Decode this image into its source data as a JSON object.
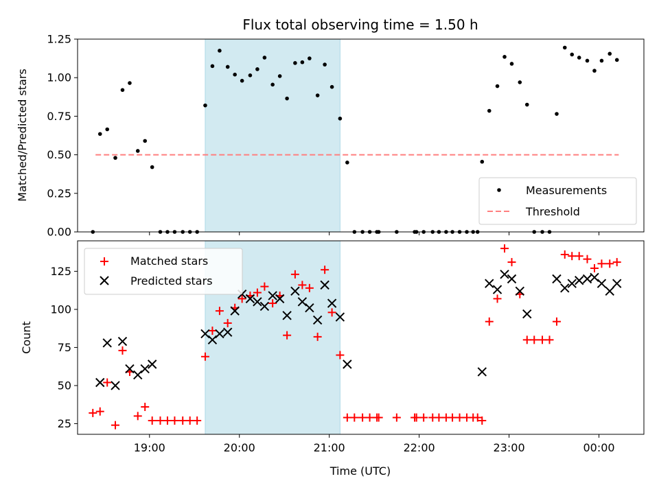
{
  "chart_data": [
    {
      "type": "scatter",
      "title": "Flux total observing time = 1.50 h",
      "xlabel": "",
      "ylabel": "Matched/Predicted stars",
      "x_unit": "UTC hour (continuing past midnight)",
      "xlim": [
        18.2,
        24.5
      ],
      "ylim": [
        0,
        1.25
      ],
      "yticks": [
        0.0,
        0.25,
        0.5,
        0.75,
        1.0,
        1.25
      ],
      "ytick_labels": [
        "0.00",
        "0.25",
        "0.50",
        "0.75",
        "1.00",
        "1.25"
      ],
      "shaded_interval": [
        19.62,
        21.12
      ],
      "shaded_color": "#add8e6",
      "legend": {
        "location": "lower-right",
        "entries": [
          "Measurements",
          "Threshold"
        ]
      },
      "threshold": {
        "name": "Threshold",
        "x": [
          18.4,
          24.22
        ],
        "y": 0.5,
        "color": "#ff7f7f",
        "style": "dashed"
      },
      "series": [
        {
          "name": "Measurements",
          "color": "#000000",
          "marker": "dot",
          "points": [
            [
              18.37,
              0.0
            ],
            [
              18.45,
              0.635
            ],
            [
              18.53,
              0.665
            ],
            [
              18.62,
              0.48
            ],
            [
              18.7,
              0.92
            ],
            [
              18.78,
              0.965
            ],
            [
              18.87,
              0.525
            ],
            [
              18.95,
              0.59
            ],
            [
              19.03,
              0.42
            ],
            [
              19.12,
              0.0
            ],
            [
              19.2,
              0.0
            ],
            [
              19.28,
              0.0
            ],
            [
              19.37,
              0.0
            ],
            [
              19.45,
              0.0
            ],
            [
              19.53,
              0.0
            ],
            [
              19.62,
              0.82
            ],
            [
              19.7,
              1.075
            ],
            [
              19.78,
              1.175
            ],
            [
              19.87,
              1.07
            ],
            [
              19.95,
              1.02
            ],
            [
              20.03,
              0.98
            ],
            [
              20.12,
              1.015
            ],
            [
              20.2,
              1.055
            ],
            [
              20.28,
              1.13
            ],
            [
              20.37,
              0.955
            ],
            [
              20.45,
              1.01
            ],
            [
              20.53,
              0.865
            ],
            [
              20.62,
              1.095
            ],
            [
              20.7,
              1.1
            ],
            [
              20.78,
              1.125
            ],
            [
              20.87,
              0.885
            ],
            [
              20.95,
              1.085
            ],
            [
              21.03,
              0.94
            ],
            [
              21.12,
              0.735
            ],
            [
              21.2,
              0.45
            ],
            [
              21.28,
              0.0
            ],
            [
              21.37,
              0.0
            ],
            [
              21.45,
              0.0
            ],
            [
              21.53,
              0.0
            ],
            [
              21.55,
              0.0
            ],
            [
              21.75,
              0.0
            ],
            [
              21.95,
              0.0
            ],
            [
              21.97,
              0.0
            ],
            [
              22.05,
              0.0
            ],
            [
              22.15,
              0.0
            ],
            [
              22.22,
              0.0
            ],
            [
              22.3,
              0.0
            ],
            [
              22.37,
              0.0
            ],
            [
              22.45,
              0.0
            ],
            [
              22.53,
              0.0
            ],
            [
              22.6,
              0.0
            ],
            [
              22.65,
              0.0
            ],
            [
              22.7,
              0.455
            ],
            [
              22.78,
              0.785
            ],
            [
              22.87,
              0.945
            ],
            [
              22.95,
              1.135
            ],
            [
              23.03,
              1.09
            ],
            [
              23.12,
              0.97
            ],
            [
              23.2,
              0.825
            ],
            [
              23.28,
              0.0
            ],
            [
              23.37,
              0.0
            ],
            [
              23.45,
              0.0
            ],
            [
              23.53,
              0.765
            ],
            [
              23.62,
              1.195
            ],
            [
              23.7,
              1.15
            ],
            [
              23.78,
              1.13
            ],
            [
              23.87,
              1.11
            ],
            [
              23.95,
              1.045
            ],
            [
              24.03,
              1.11
            ],
            [
              24.12,
              1.155
            ],
            [
              24.2,
              1.115
            ]
          ]
        }
      ]
    },
    {
      "type": "scatter",
      "title": "",
      "xlabel": "Time (UTC)",
      "ylabel": "Count",
      "x_unit": "UTC hour (continuing past midnight)",
      "xlim": [
        18.2,
        24.5
      ],
      "ylim": [
        18,
        145
      ],
      "yticks": [
        25,
        50,
        75,
        100,
        125
      ],
      "ytick_labels": [
        "25",
        "50",
        "75",
        "100",
        "125"
      ],
      "xticks": [
        19,
        20,
        21,
        22,
        23,
        24
      ],
      "xtick_labels": [
        "19:00",
        "20:00",
        "21:00",
        "22:00",
        "23:00",
        "00:00"
      ],
      "shaded_interval": [
        19.62,
        21.12
      ],
      "shaded_color": "#add8e6",
      "legend": {
        "location": "upper-left",
        "entries": [
          "Matched stars",
          "Predicted stars"
        ]
      },
      "series": [
        {
          "name": "Matched stars",
          "color": "#ff0000",
          "marker": "plus",
          "points": [
            [
              18.37,
              32
            ],
            [
              18.45,
              33
            ],
            [
              18.53,
              52
            ],
            [
              18.62,
              24
            ],
            [
              18.7,
              73
            ],
            [
              18.78,
              59
            ],
            [
              18.87,
              30
            ],
            [
              18.95,
              36
            ],
            [
              19.03,
              27
            ],
            [
              19.12,
              27
            ],
            [
              19.2,
              27
            ],
            [
              19.28,
              27
            ],
            [
              19.37,
              27
            ],
            [
              19.45,
              27
            ],
            [
              19.53,
              27
            ],
            [
              19.62,
              69
            ],
            [
              19.7,
              86
            ],
            [
              19.78,
              99
            ],
            [
              19.87,
              91
            ],
            [
              19.95,
              101
            ],
            [
              20.03,
              107
            ],
            [
              20.12,
              109
            ],
            [
              20.2,
              111
            ],
            [
              20.28,
              115
            ],
            [
              20.37,
              104
            ],
            [
              20.45,
              109
            ],
            [
              20.53,
              83
            ],
            [
              20.62,
              123
            ],
            [
              20.7,
              116
            ],
            [
              20.78,
              114
            ],
            [
              20.87,
              82
            ],
            [
              20.95,
              126
            ],
            [
              21.03,
              98
            ],
            [
              21.12,
              70
            ],
            [
              21.2,
              29
            ],
            [
              21.28,
              29
            ],
            [
              21.37,
              29
            ],
            [
              21.45,
              29
            ],
            [
              21.53,
              29
            ],
            [
              21.55,
              29
            ],
            [
              21.75,
              29
            ],
            [
              21.95,
              29
            ],
            [
              21.97,
              29
            ],
            [
              22.05,
              29
            ],
            [
              22.15,
              29
            ],
            [
              22.22,
              29
            ],
            [
              22.3,
              29
            ],
            [
              22.37,
              29
            ],
            [
              22.45,
              29
            ],
            [
              22.53,
              29
            ],
            [
              22.6,
              29
            ],
            [
              22.65,
              29
            ],
            [
              22.7,
              27
            ],
            [
              22.78,
              92
            ],
            [
              22.87,
              107
            ],
            [
              22.95,
              140
            ],
            [
              23.03,
              131
            ],
            [
              23.12,
              110
            ],
            [
              23.2,
              80
            ],
            [
              23.28,
              80
            ],
            [
              23.37,
              80
            ],
            [
              23.45,
              80
            ],
            [
              23.53,
              92
            ],
            [
              23.62,
              136
            ],
            [
              23.7,
              135
            ],
            [
              23.78,
              135
            ],
            [
              23.87,
              133
            ],
            [
              23.95,
              127
            ],
            [
              24.03,
              130
            ],
            [
              24.12,
              130
            ],
            [
              24.2,
              131
            ]
          ]
        },
        {
          "name": "Predicted stars",
          "color": "#000000",
          "marker": "x",
          "points": [
            [
              18.45,
              52
            ],
            [
              18.53,
              78
            ],
            [
              18.62,
              50
            ],
            [
              18.7,
              79
            ],
            [
              18.78,
              61
            ],
            [
              18.87,
              57
            ],
            [
              18.95,
              61
            ],
            [
              19.03,
              64
            ],
            [
              19.62,
              84
            ],
            [
              19.7,
              80
            ],
            [
              19.78,
              84
            ],
            [
              19.87,
              85
            ],
            [
              19.95,
              99
            ],
            [
              20.03,
              110
            ],
            [
              20.12,
              107
            ],
            [
              20.2,
              105
            ],
            [
              20.28,
              102
            ],
            [
              20.37,
              109
            ],
            [
              20.45,
              107
            ],
            [
              20.53,
              96
            ],
            [
              20.62,
              112
            ],
            [
              20.7,
              105
            ],
            [
              20.78,
              101
            ],
            [
              20.87,
              93
            ],
            [
              20.95,
              116
            ],
            [
              21.03,
              104
            ],
            [
              21.12,
              95
            ],
            [
              21.2,
              64
            ],
            [
              22.7,
              59
            ],
            [
              22.78,
              117
            ],
            [
              22.87,
              113
            ],
            [
              22.95,
              123
            ],
            [
              23.03,
              120
            ],
            [
              23.12,
              112
            ],
            [
              23.2,
              97
            ],
            [
              23.53,
              120
            ],
            [
              23.62,
              114
            ],
            [
              23.7,
              117
            ],
            [
              23.78,
              119
            ],
            [
              23.87,
              120
            ],
            [
              23.95,
              121
            ],
            [
              24.03,
              117
            ],
            [
              24.12,
              112
            ],
            [
              24.2,
              117
            ]
          ]
        }
      ]
    }
  ]
}
